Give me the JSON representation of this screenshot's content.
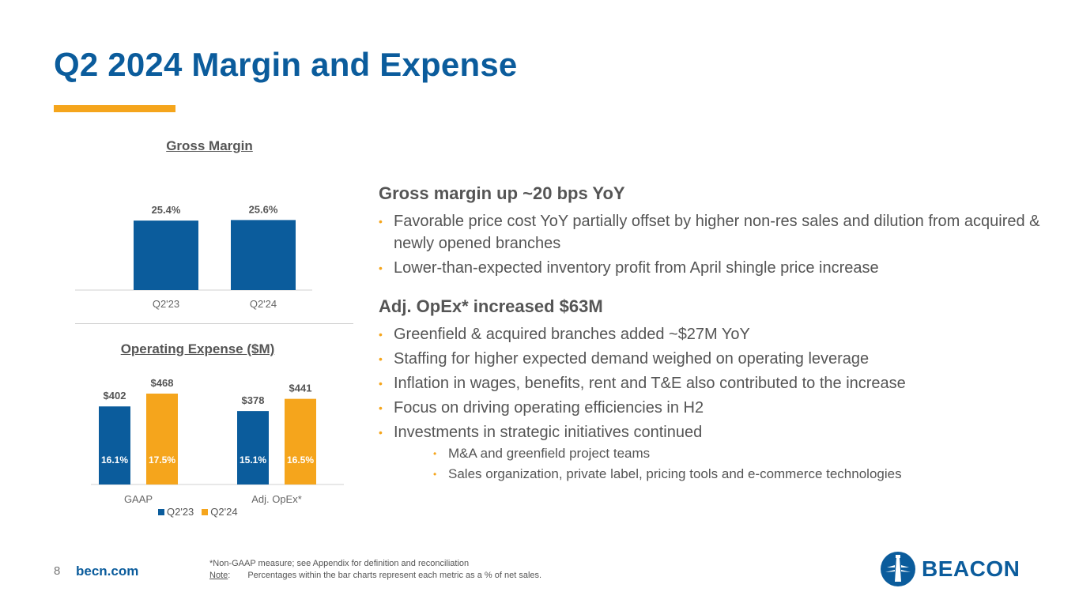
{
  "page": {
    "title": "Q2 2024 Margin and Expense",
    "page_number": "8",
    "site": "becn.com",
    "footnote_line1": "*Non-GAAP measure; see Appendix for definition and reconciliation",
    "note_label": "Note",
    "note_colon": ":",
    "note_text": "Percentages within the bar charts represent each metric as a % of net sales.",
    "logo_text": "BEACON",
    "colors": {
      "blue": "#0b5c9c",
      "orange": "#f5a51c",
      "text": "#555555"
    },
    "icons": [
      "beacon-lighthouse-logo-icon"
    ]
  },
  "chart_data": [
    {
      "type": "bar",
      "title": "Gross Margin",
      "categories": [
        "Q2'23",
        "Q2'24"
      ],
      "values": [
        25.4,
        25.6
      ],
      "value_labels": [
        "25.4%",
        "25.6%"
      ],
      "colors": [
        "#0b5c9c",
        "#0b5c9c"
      ],
      "xlabel": "",
      "ylabel": "",
      "grid": false
    },
    {
      "type": "bar",
      "title": "Operating Expense ($M)",
      "categories": [
        "GAAP",
        "Adj. OpEx*"
      ],
      "series": [
        {
          "name": "Q2'23",
          "values": [
            402,
            378
          ],
          "value_labels": [
            "$402",
            "$378"
          ],
          "pct_labels": [
            "16.1%",
            "15.1%"
          ],
          "color": "#0b5c9c"
        },
        {
          "name": "Q2'24",
          "values": [
            468,
            441
          ],
          "value_labels": [
            "$468",
            "$441"
          ],
          "pct_labels": [
            "17.5%",
            "16.5%"
          ],
          "color": "#f5a51c"
        }
      ],
      "legend": "bottom",
      "xlabel": "",
      "ylabel": "",
      "grid": false
    }
  ],
  "sections": [
    {
      "heading": "Gross margin up ~20 bps YoY",
      "bullets": [
        {
          "text": "Favorable price cost YoY partially offset by higher non-res sales and dilution from acquired & newly opened branches"
        },
        {
          "text": "Lower-than-expected inventory profit from April shingle price increase"
        }
      ]
    },
    {
      "heading": "Adj. OpEx* increased $63M",
      "bullets": [
        {
          "text": "Greenfield & acquired branches added ~$27M YoY"
        },
        {
          "text": "Staffing for higher expected demand weighed on operating leverage"
        },
        {
          "text": "Inflation in wages, benefits, rent and T&E also contributed to the increase"
        },
        {
          "text": "Focus on driving operating efficiencies in H2"
        },
        {
          "text": "Investments in strategic initiatives continued"
        }
      ],
      "sub_bullets": [
        "M&A and greenfield project teams",
        "Sales organization, private label, pricing tools and e-commerce technologies"
      ]
    }
  ]
}
